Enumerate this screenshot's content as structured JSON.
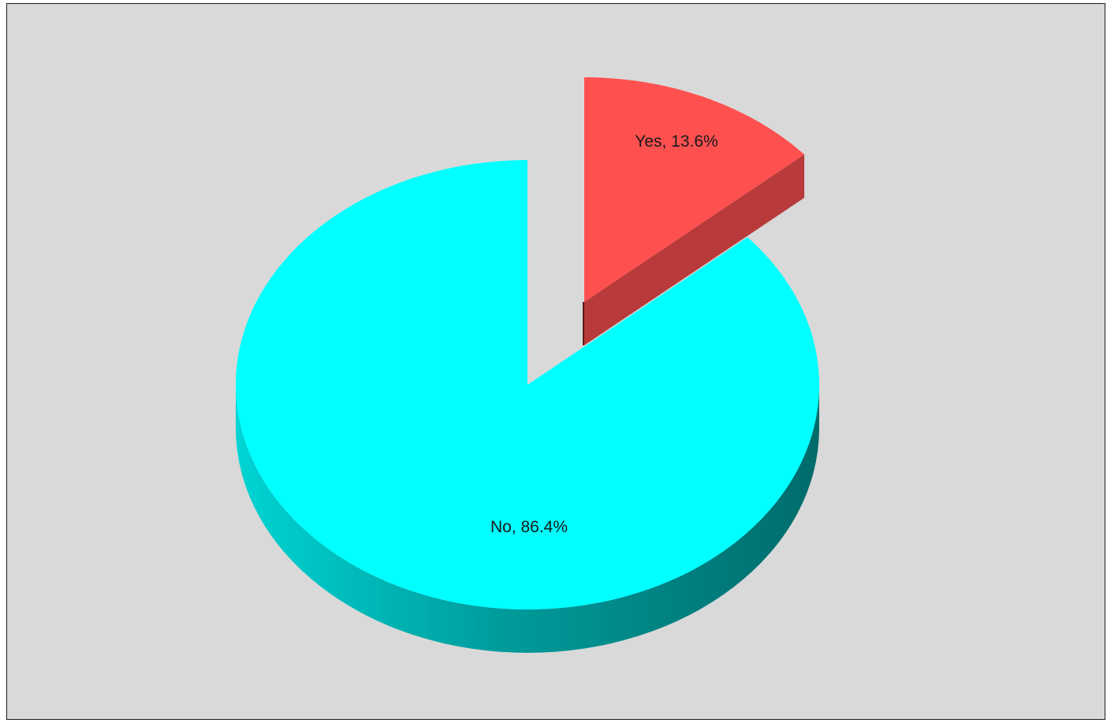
{
  "chart_data": {
    "type": "pie",
    "variant": "3d-exploded",
    "title": "",
    "categories": [
      "No",
      "Yes"
    ],
    "values": [
      86.4,
      13.6
    ],
    "labels": [
      "No, 86.4%",
      "Yes, 13.6%"
    ],
    "colors": [
      "#00ffff",
      "#ff5050"
    ],
    "side_colors": [
      "#00a8a8",
      "#b83a3a"
    ],
    "exploded": [
      "Yes"
    ],
    "legend": "none",
    "background": "#d9d9d9"
  }
}
